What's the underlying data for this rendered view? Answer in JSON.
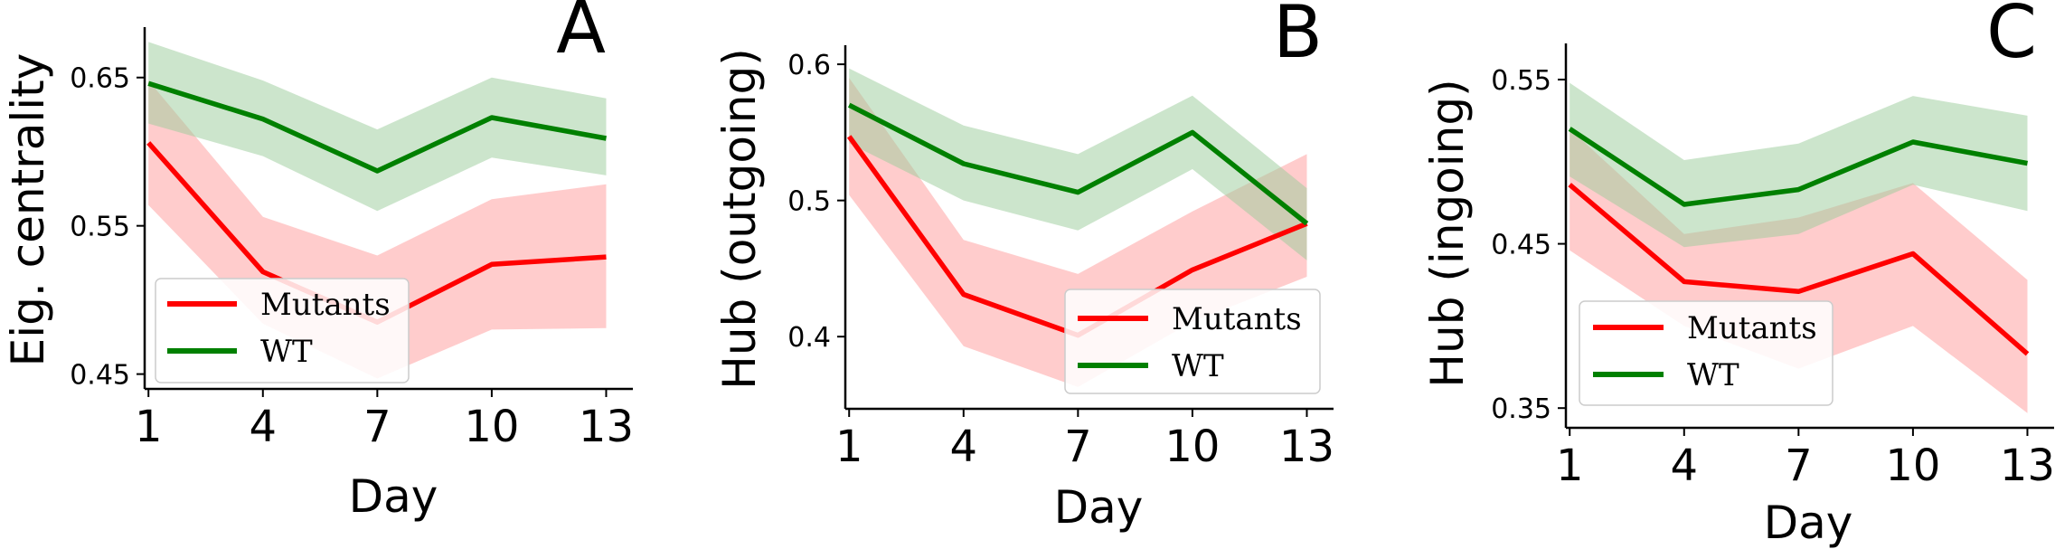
{
  "figure": {
    "type": "multi-panel line chart with confidence bands"
  },
  "colors": {
    "mutants": "#ff0000",
    "wt": "#008000",
    "mutants_band": "#ff9999",
    "wt_band": "#99cc99"
  },
  "chart_data": [
    {
      "type": "line",
      "panel_letter": "A",
      "xlabel": "Day",
      "ylabel": "Eig. centrality",
      "x": [
        1,
        4,
        7,
        10,
        13
      ],
      "xticks": [
        1,
        4,
        7,
        10,
        13
      ],
      "xticklabels": [
        "1",
        "4",
        "7",
        "10",
        "13"
      ],
      "xlim": [
        0.9,
        13.7
      ],
      "ylim": [
        0.44,
        0.684
      ],
      "yticks": [
        0.45,
        0.55,
        0.65
      ],
      "yticklabels": [
        "0.45",
        "0.55",
        "0.65"
      ],
      "legend_position": "lower-left",
      "series": [
        {
          "name": "Mutants",
          "color": "#ff0000",
          "values": [
            0.606,
            0.519,
            0.485,
            0.524,
            0.529
          ],
          "lower": [
            0.564,
            0.484,
            0.447,
            0.48,
            0.481
          ],
          "upper": [
            0.648,
            0.556,
            0.53,
            0.568,
            0.578
          ]
        },
        {
          "name": "WT",
          "color": "#008000",
          "values": [
            0.646,
            0.622,
            0.587,
            0.623,
            0.609
          ],
          "lower": [
            0.619,
            0.597,
            0.56,
            0.596,
            0.584
          ],
          "upper": [
            0.674,
            0.648,
            0.615,
            0.65,
            0.636
          ]
        }
      ]
    },
    {
      "type": "line",
      "panel_letter": "B",
      "xlabel": "Day",
      "ylabel": "Hub (outgoing)",
      "x": [
        1,
        4,
        7,
        10,
        13
      ],
      "xticks": [
        1,
        4,
        7,
        10,
        13
      ],
      "xticklabels": [
        "1",
        "4",
        "7",
        "10",
        "13"
      ],
      "xlim": [
        0.9,
        13.7
      ],
      "ylim": [
        0.347,
        0.614
      ],
      "yticks": [
        0.4,
        0.5,
        0.6
      ],
      "yticklabels": [
        "0.4",
        "0.5",
        "0.6"
      ],
      "legend_position": "lower-right",
      "series": [
        {
          "name": "Mutants",
          "color": "#ff0000",
          "values": [
            0.547,
            0.431,
            0.401,
            0.449,
            0.483
          ],
          "lower": [
            0.504,
            0.393,
            0.363,
            0.411,
            0.444
          ],
          "upper": [
            0.59,
            0.471,
            0.446,
            0.492,
            0.534
          ]
        },
        {
          "name": "WT",
          "color": "#008000",
          "values": [
            0.57,
            0.527,
            0.506,
            0.55,
            0.483
          ],
          "lower": [
            0.542,
            0.5,
            0.478,
            0.523,
            0.456
          ],
          "upper": [
            0.597,
            0.555,
            0.534,
            0.577,
            0.509
          ]
        }
      ]
    },
    {
      "type": "line",
      "panel_letter": "C",
      "xlabel": "Day",
      "ylabel": "Hub (ingoing)",
      "x": [
        1,
        4,
        7,
        10,
        13
      ],
      "xticks": [
        1,
        4,
        7,
        10,
        13
      ],
      "xticklabels": [
        "1",
        "4",
        "7",
        "10",
        "13"
      ],
      "xlim": [
        0.9,
        13.7
      ],
      "ylim": [
        0.338,
        0.572
      ],
      "yticks": [
        0.35,
        0.45,
        0.55
      ],
      "yticklabels": [
        "0.35",
        "0.45",
        "0.55"
      ],
      "legend_position": "lower-left",
      "series": [
        {
          "name": "Mutants",
          "color": "#ff0000",
          "values": [
            0.486,
            0.427,
            0.421,
            0.444,
            0.383
          ],
          "lower": [
            0.446,
            0.4,
            0.374,
            0.4,
            0.347
          ],
          "upper": [
            0.52,
            0.456,
            0.466,
            0.487,
            0.428
          ]
        },
        {
          "name": "WT",
          "color": "#008000",
          "values": [
            0.52,
            0.474,
            0.483,
            0.512,
            0.499
          ],
          "lower": [
            0.491,
            0.448,
            0.456,
            0.486,
            0.47
          ],
          "upper": [
            0.548,
            0.501,
            0.511,
            0.54,
            0.528
          ]
        }
      ]
    }
  ]
}
